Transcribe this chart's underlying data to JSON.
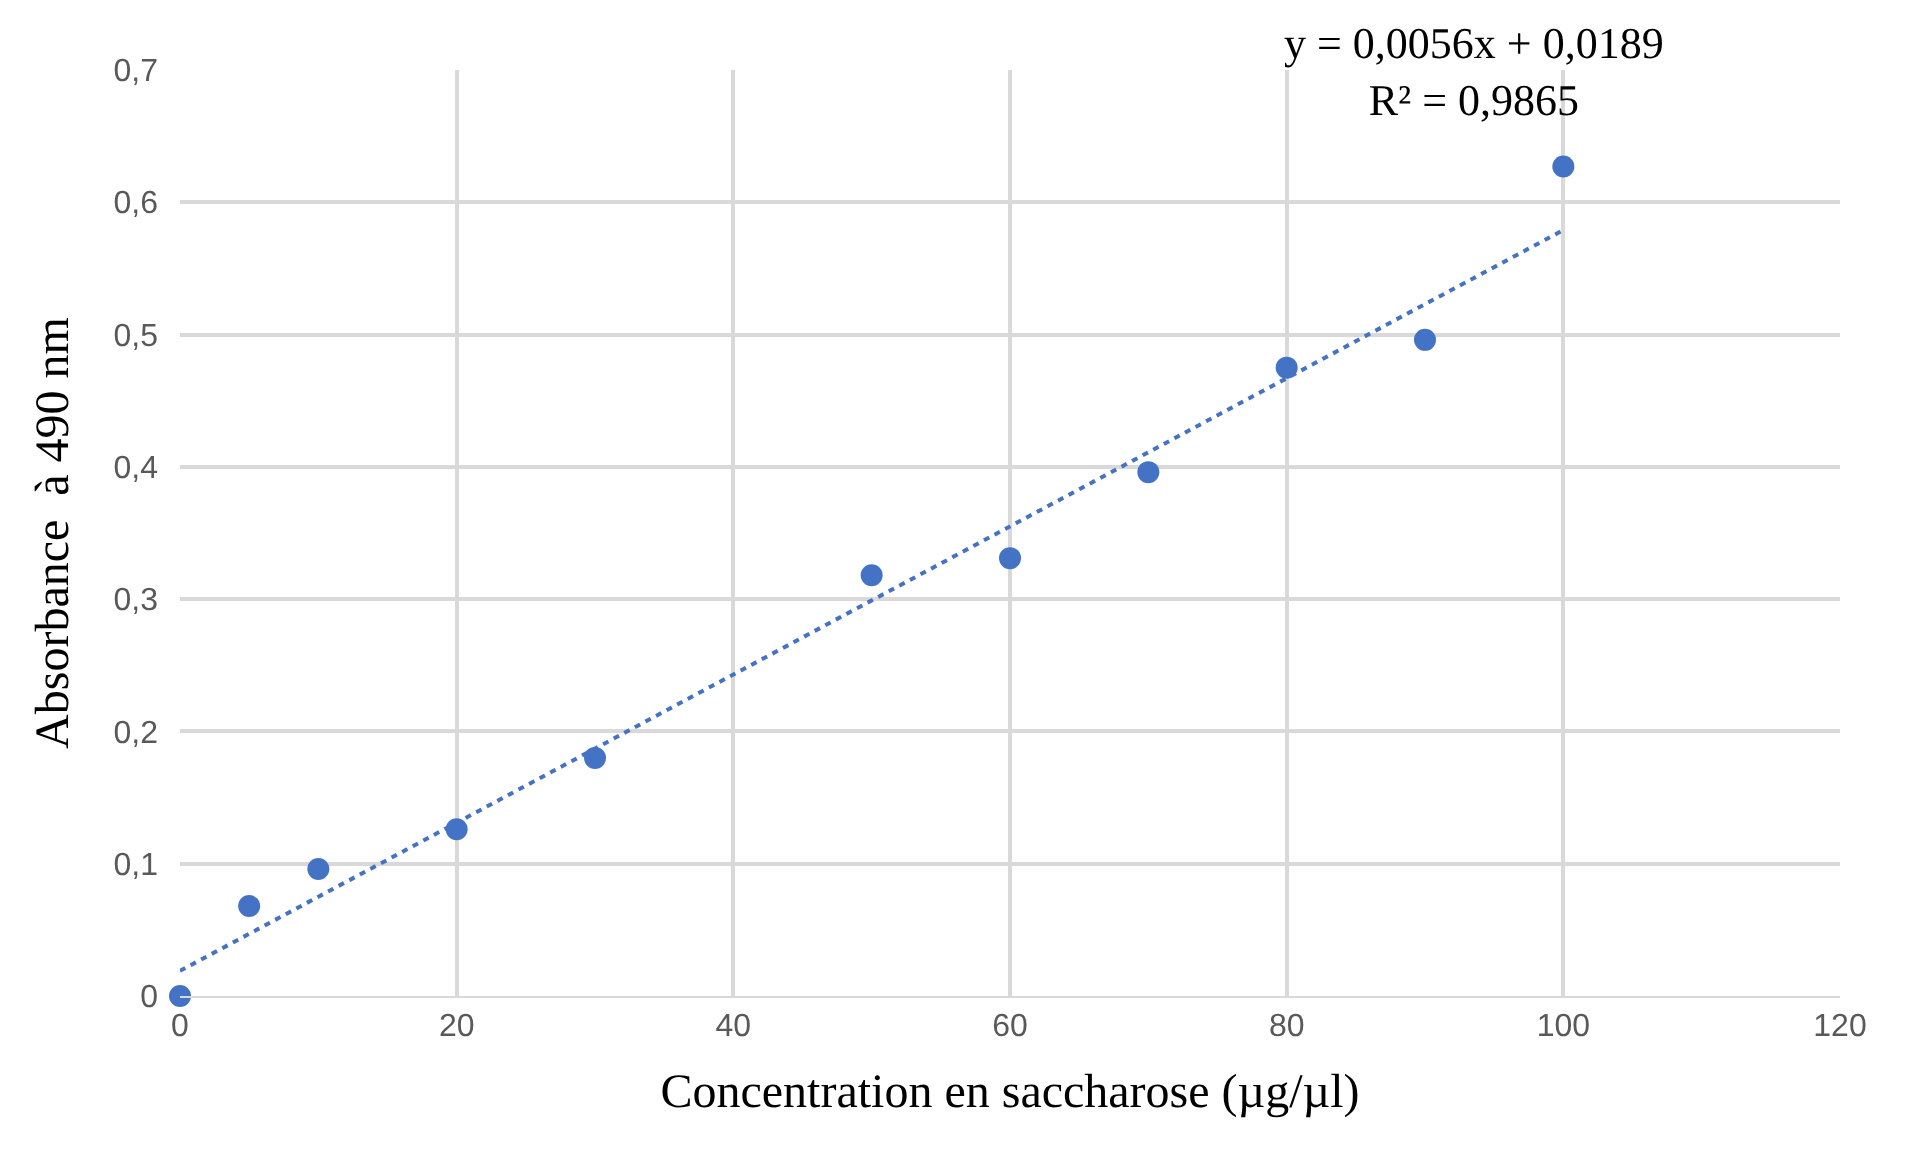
{
  "chart_data": {
    "type": "scatter",
    "xlabel": "Concentration en saccharose (µg/µl)",
    "ylabel": "Absorbance  à 490 nm",
    "annotations": [
      "y = 0,0056x + 0,0189\nR² = 0,9865"
    ],
    "series": [
      {
        "color": "#4472c4",
        "marker": "circle",
        "x": [
          0,
          5,
          10,
          20,
          30,
          50,
          60,
          70,
          80,
          90,
          100
        ],
        "values": [
          0.0,
          0.068,
          0.096,
          0.126,
          0.18,
          0.318,
          0.331,
          0.396,
          0.475,
          0.496,
          0.627
        ]
      },
      {
        "type": "line",
        "color": "#4472c4",
        "marker": "none",
        "line_style": "dotted",
        "x": [
          0,
          100
        ],
        "values": [
          0.019,
          0.579
        ]
      }
    ],
    "xlim": [
      0,
      120
    ],
    "xticks": [
      0,
      20,
      40,
      60,
      80,
      100,
      120
    ],
    "ylim": [
      0,
      0.7
    ],
    "yticks": [
      0,
      {
        "value": 0.1,
        "label": "0,1"
      },
      {
        "value": 0.2,
        "label": "0,2"
      },
      {
        "value": 0.3,
        "label": "0,3"
      },
      {
        "value": 0.4,
        "label": "0,4"
      },
      {
        "value": 0.5,
        "label": "0,5"
      },
      {
        "value": 0.6,
        "label": "0,6"
      },
      {
        "value": 0.7,
        "label": "0,7"
      }
    ],
    "grid": true
  }
}
